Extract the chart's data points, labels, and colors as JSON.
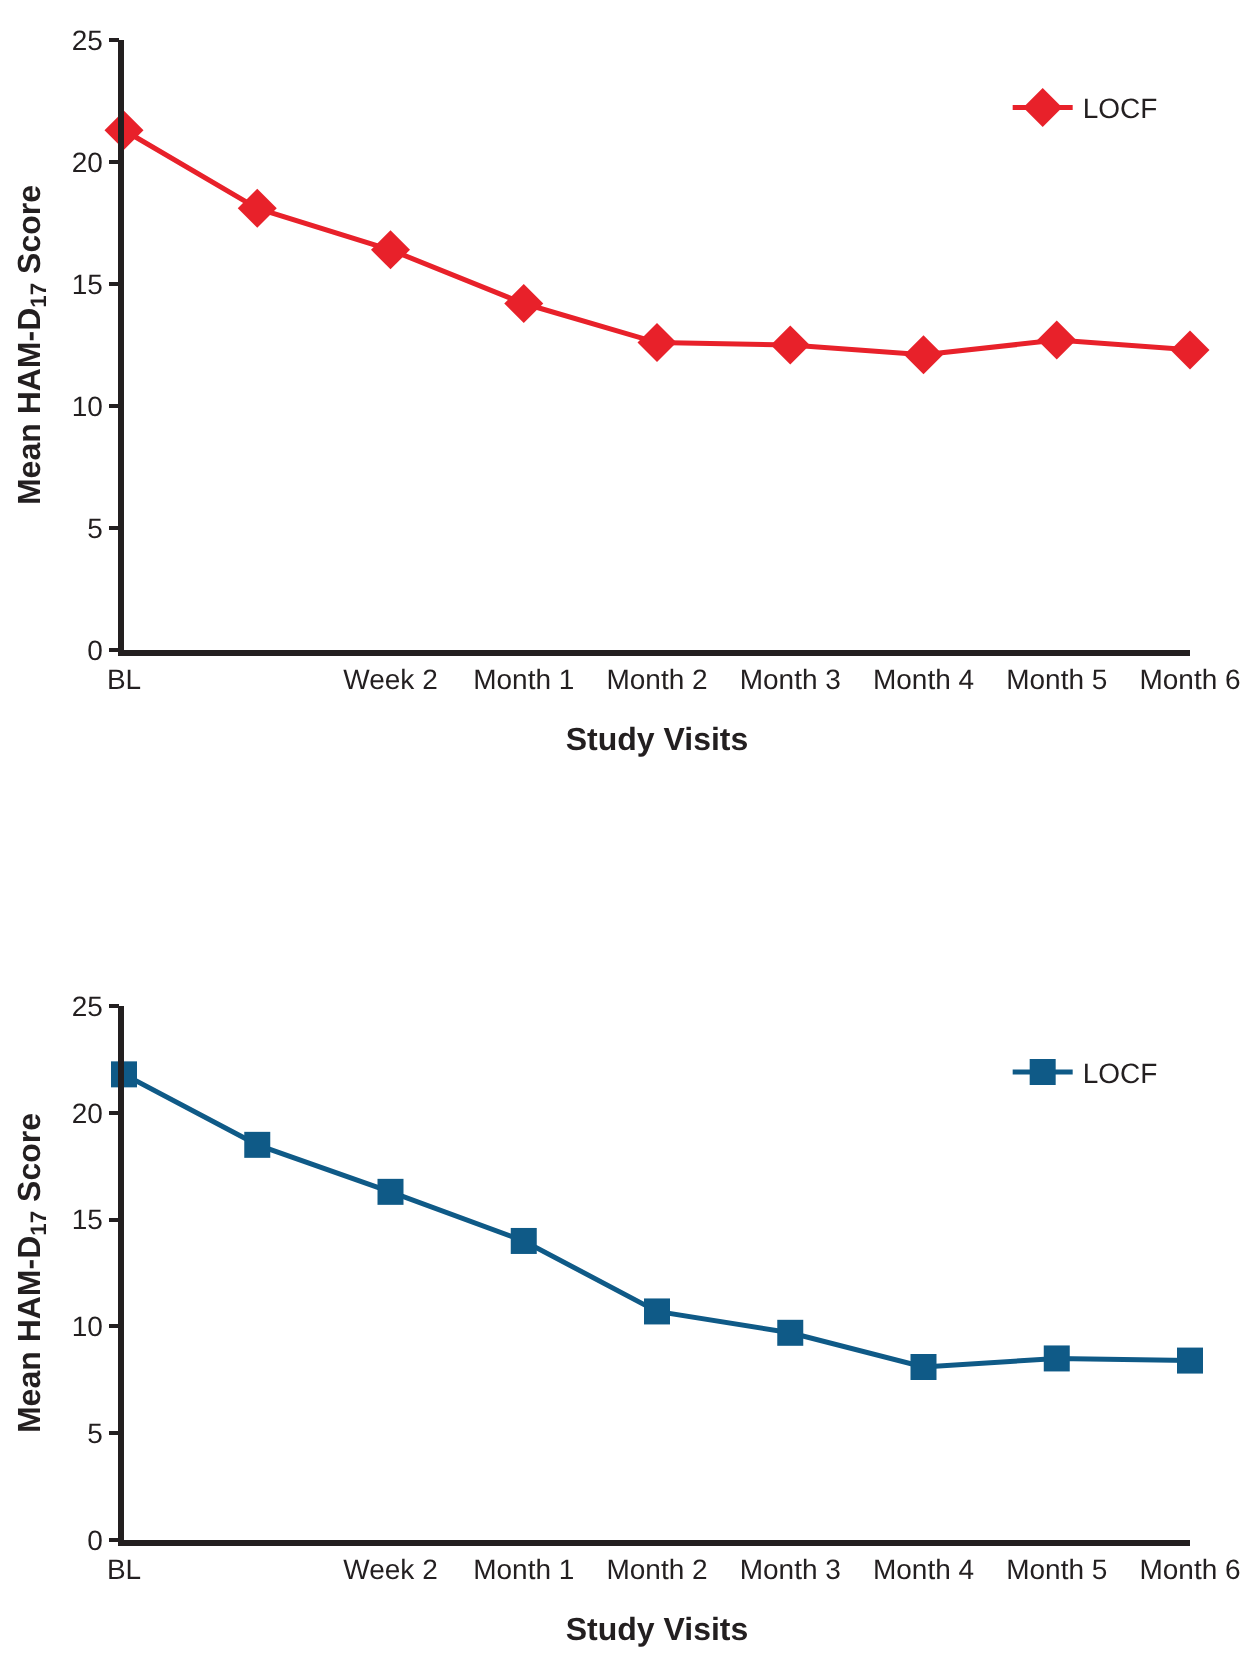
{
  "chart_data": [
    {
      "type": "line",
      "xlabel": "Study Visits",
      "ylabel": "Mean HAM-D$_{17}$ Score",
      "categories": [
        "BL",
        null,
        "Week 2",
        "Month 1",
        "Month 2",
        "Month 3",
        "Month 4",
        "Month 5",
        "Month 6"
      ],
      "series": [
        {
          "name": "LOCF",
          "color": "#e8212a",
          "values": [
            21.3,
            18.1,
            16.4,
            14.2,
            12.6,
            12.5,
            12.1,
            12.7,
            12.3
          ]
        }
      ],
      "ylim": [
        0,
        25
      ],
      "yticks": [
        0,
        5,
        10,
        15,
        20,
        25
      ],
      "legend": "top right",
      "marker": "diamond",
      "line_style": "solid"
    },
    {
      "type": "line",
      "xlabel": "Study Visits",
      "ylabel": "Mean HAM-D$_{17}$ Score",
      "categories": [
        "BL",
        null,
        "Week 2",
        "Month 1",
        "Month 2",
        "Month 3",
        "Month 4",
        "Month 5",
        "Month 6"
      ],
      "series": [
        {
          "name": "LOCF",
          "color": "#0f5a87",
          "values": [
            21.8,
            18.5,
            16.3,
            14.0,
            10.7,
            9.7,
            8.1,
            8.5,
            8.4
          ]
        }
      ],
      "ylim": [
        0,
        25
      ],
      "yticks": [
        0,
        5,
        10,
        15,
        20,
        25
      ],
      "legend": "top right",
      "marker": "square",
      "line_style": "solid"
    }
  ]
}
